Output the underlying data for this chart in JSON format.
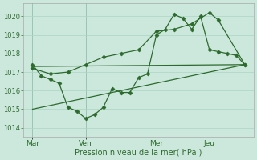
{
  "bg_color": "#cce8dc",
  "grid_color": "#aad4c4",
  "line_color": "#2d6a2d",
  "xlabel": "Pression niveau de la mer( hPa )",
  "xlabel_color": "#2d6a2d",
  "ylim": [
    1013.5,
    1020.7
  ],
  "yticks": [
    1014,
    1015,
    1016,
    1017,
    1018,
    1019,
    1020
  ],
  "day_labels": [
    "Mar",
    "Ven",
    "Mer",
    "Jeu"
  ],
  "day_positions": [
    0.5,
    3.5,
    7.5,
    10.5
  ],
  "xlim": [
    0,
    13
  ],
  "series1_x": [
    0.5,
    1.0,
    1.5,
    2.0,
    2.5,
    3.0,
    3.5,
    4.0,
    4.5,
    5.0,
    5.5,
    6.0,
    6.5,
    7.0,
    7.5,
    8.0,
    8.5,
    9.0,
    9.5,
    10.0,
    10.5,
    11.0,
    11.5,
    12.0,
    12.5
  ],
  "series1_y": [
    1017.4,
    1016.8,
    1016.6,
    1016.4,
    1015.1,
    1014.9,
    1014.5,
    1014.7,
    1015.1,
    1016.1,
    1015.9,
    1015.9,
    1016.7,
    1016.9,
    1019.0,
    1019.3,
    1020.1,
    1019.9,
    1019.3,
    1020.0,
    1018.2,
    1018.1,
    1018.0,
    1017.9,
    1017.4
  ],
  "series2_x": [
    0.5,
    1.5,
    2.5,
    3.5,
    4.5,
    5.5,
    6.5,
    7.5,
    8.5,
    9.5,
    10.5,
    11.0,
    12.5
  ],
  "series2_y": [
    1017.2,
    1016.9,
    1017.0,
    1017.4,
    1017.8,
    1018.0,
    1018.2,
    1019.2,
    1019.3,
    1019.6,
    1020.2,
    1019.8,
    1017.4
  ],
  "series3_x": [
    0.5,
    12.5
  ],
  "series3_y": [
    1017.3,
    1017.4
  ],
  "series4_x": [
    0.5,
    12.5
  ],
  "series4_y": [
    1015.0,
    1017.4
  ]
}
